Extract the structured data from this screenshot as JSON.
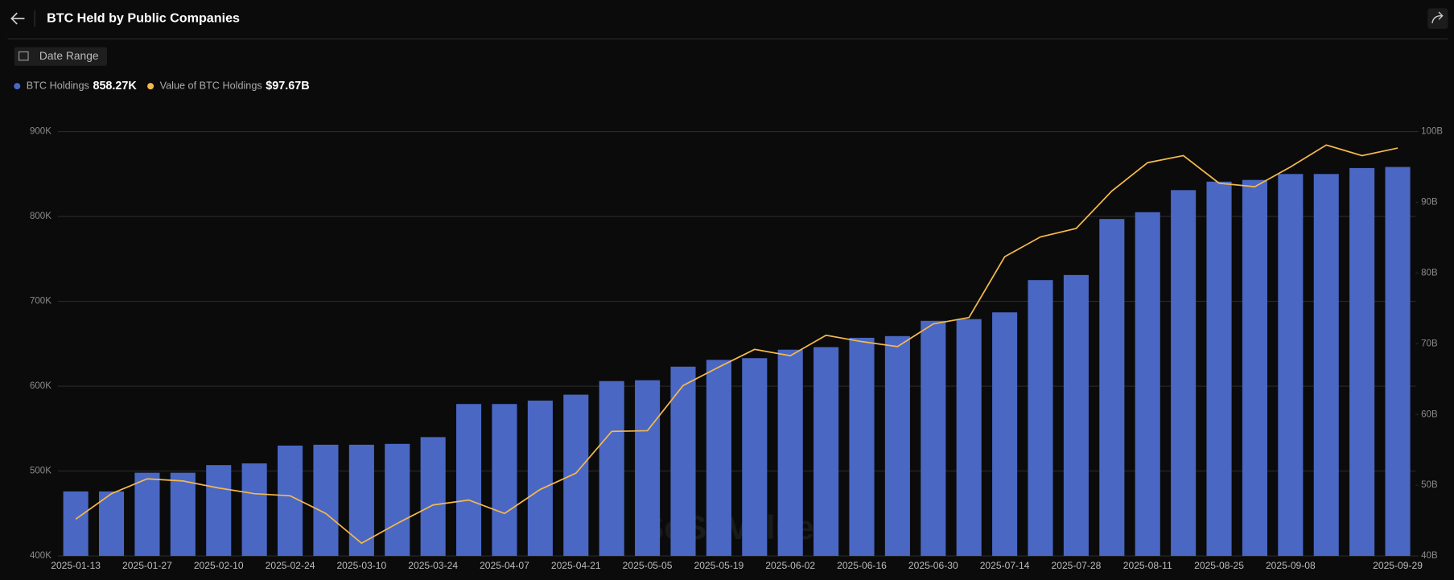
{
  "header": {
    "title": "BTC Held by Public Companies",
    "date_range": "Date Range"
  },
  "chart_data": {
    "type": "bar",
    "watermark": "SoSoValue",
    "categories": [
      "2025-01-13",
      null,
      "2025-01-27",
      null,
      "2025-02-10",
      null,
      "2025-02-24",
      null,
      "2025-03-10",
      null,
      "2025-03-24",
      null,
      "2025-04-07",
      null,
      "2025-04-21",
      null,
      "2025-05-05",
      null,
      "2025-05-19",
      null,
      "2025-06-02",
      null,
      "2025-06-16",
      null,
      "2025-06-30",
      null,
      "2025-07-14",
      null,
      "2025-07-28",
      null,
      "2025-08-11",
      null,
      "2025-08-25",
      null,
      "2025-09-08",
      null,
      null,
      "2025-09-29"
    ],
    "series": [
      {
        "name": "BTC Holdings",
        "legend_value": "858.27K",
        "type": "bar",
        "color": "#4a67c4",
        "values": [
          476000,
          476000,
          498000,
          498000,
          507000,
          509000,
          530000,
          531000,
          531000,
          532000,
          540000,
          579000,
          579000,
          583000,
          590000,
          606000,
          607000,
          623000,
          631000,
          633000,
          643000,
          646000,
          657000,
          659000,
          677000,
          679000,
          687000,
          725000,
          731000,
          797000,
          805000,
          831000,
          841000,
          843000,
          850000,
          850000,
          857000,
          858270
        ]
      },
      {
        "name": "Value of BTC Holdings",
        "legend_value": "$97.67B",
        "type": "line",
        "axis": "y2",
        "color": "#f5b94b",
        "values": [
          45200000000,
          48800000000,
          50900000000,
          50600000000,
          49600000000,
          48800000000,
          48500000000,
          46000000000,
          41800000000,
          44600000000,
          47200000000,
          47900000000,
          46000000000,
          49400000000,
          51700000000,
          57600000000,
          57700000000,
          64100000000,
          66700000000,
          69200000000,
          68300000000,
          71200000000,
          70300000000,
          69600000000,
          72800000000,
          73700000000,
          82300000000,
          85100000000,
          86300000000,
          91600000000,
          95600000000,
          96600000000,
          92700000000,
          92200000000,
          95000000000,
          98100000000,
          96600000000,
          97670000000
        ]
      }
    ],
    "ylim": [
      400000,
      900000
    ],
    "yticks": [
      {
        "value": 400000,
        "label": "400K"
      },
      {
        "value": 500000,
        "label": "500K"
      },
      {
        "value": 600000,
        "label": "600K"
      },
      {
        "value": 700000,
        "label": "700K"
      },
      {
        "value": 800000,
        "label": "800K"
      },
      {
        "value": 900000,
        "label": "900K"
      }
    ],
    "y2lim": [
      40000000000,
      100000000000
    ],
    "y2ticks": [
      {
        "value": 40000000000,
        "label": "40B"
      },
      {
        "value": 50000000000,
        "label": "50B"
      },
      {
        "value": 60000000000,
        "label": "60B"
      },
      {
        "value": 70000000000,
        "label": "70B"
      },
      {
        "value": 80000000000,
        "label": "80B"
      },
      {
        "value": 90000000000,
        "label": "90B"
      },
      {
        "value": 100000000000,
        "label": "100B"
      }
    ],
    "grid": true
  }
}
